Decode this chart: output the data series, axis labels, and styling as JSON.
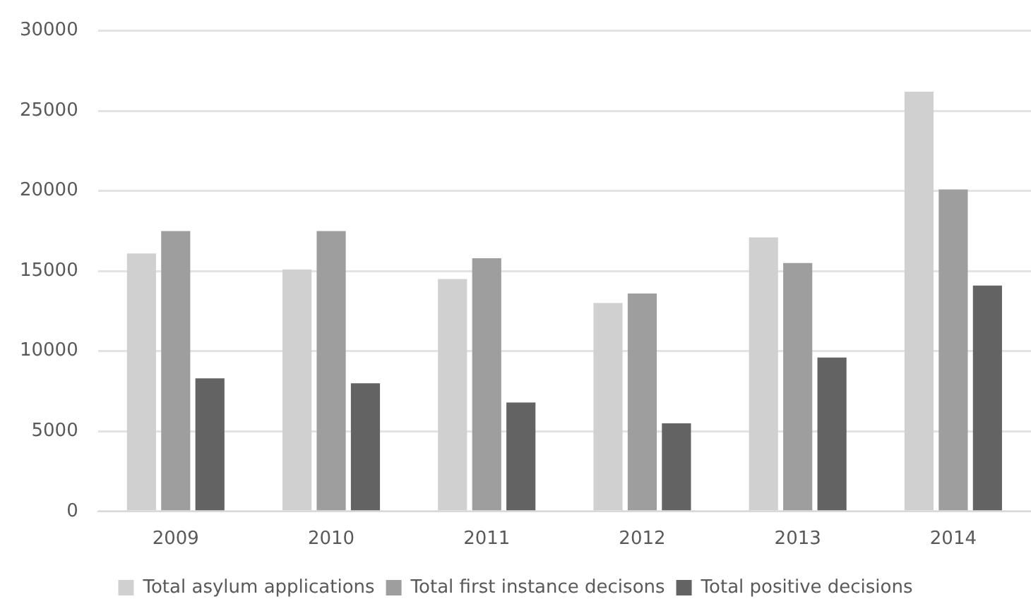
{
  "chart_data": {
    "type": "bar",
    "categories": [
      "2009",
      "2010",
      "2011",
      "2012",
      "2013",
      "2014"
    ],
    "series": [
      {
        "name": "Total asylum applications",
        "color": "#d0d0d0",
        "values": [
          16100,
          15100,
          14500,
          13000,
          17100,
          26200
        ]
      },
      {
        "name": "Total first instance decisons",
        "color": "#9e9e9e",
        "values": [
          17500,
          17500,
          15800,
          13600,
          15500,
          20100
        ]
      },
      {
        "name": "Total positive decisions",
        "color": "#636363",
        "values": [
          8300,
          8000,
          6800,
          5500,
          9600,
          14100
        ]
      }
    ],
    "ylim": [
      0,
      30000
    ],
    "yticks": [
      0,
      5000,
      10000,
      15000,
      20000,
      25000,
      30000
    ],
    "grid": "y",
    "legend": "bottom"
  }
}
